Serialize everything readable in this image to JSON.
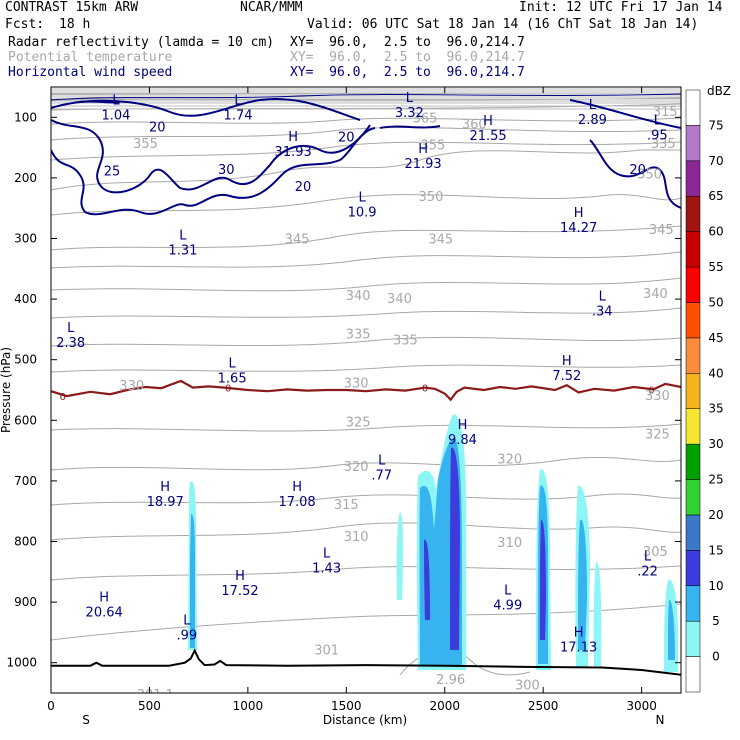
{
  "header": {
    "model": "CONTRAST 15km ARW",
    "org": "NCAR/MMM",
    "init": "Init: 12 UTC Fri 17 Jan 14",
    "fcst_label": "Fcst:",
    "fcst_value": "18 h",
    "valid": "Valid: 06 UTC Sat 18 Jan 14 (16 ChT Sat 18 Jan 14)",
    "fields": [
      {
        "name": "Radar reflectivity (lamda = 10 cm)",
        "xy": "XY=  96.0,  2.5 to  96.0,214.7",
        "color": "#000000"
      },
      {
        "name": "Potential temperature",
        "xy": "XY=  96.0,  2.5 to  96.0,214.7",
        "color": "#a8a8a8"
      },
      {
        "name": "Horizontal wind speed",
        "xy": "XY=  96.0,  2.5 to  96.0,214.7",
        "color": "#000080"
      }
    ]
  },
  "chart_data": {
    "type": "cross-section",
    "xlabel": "Distance (km)",
    "ylabel": "Pressure (hPa)",
    "xlim": [
      0,
      3200
    ],
    "ylim": [
      1050,
      50
    ],
    "xticks": [
      0,
      500,
      1000,
      1500,
      2000,
      2500,
      3000
    ],
    "yticks": [
      100,
      200,
      300,
      400,
      500,
      600,
      700,
      800,
      900,
      1000
    ],
    "endpoints": {
      "left": "S",
      "right": "N"
    },
    "colorbar": {
      "title": "dBZ",
      "levels": [
        0,
        5,
        10,
        15,
        20,
        25,
        30,
        35,
        40,
        45,
        50,
        55,
        60,
        65,
        70,
        75
      ],
      "colors": [
        "#ffffff",
        "#8cf5f5",
        "#37b4f0",
        "#3c3cdc",
        "#3c78c8",
        "#30d230",
        "#00a000",
        "#f5e632",
        "#f5b41e",
        "#fa8c3c",
        "#ff5000",
        "#ff0000",
        "#c80000",
        "#a01414",
        "#8c2896",
        "#b478c8",
        "#ffffff"
      ]
    },
    "theta_labels": [
      {
        "text": "365",
        "x": 1900,
        "p": 100
      },
      {
        "text": "360",
        "x": 2150,
        "p": 110
      },
      {
        "text": "315",
        "x": 3120,
        "p": 90
      },
      {
        "text": "355",
        "x": 480,
        "p": 142
      },
      {
        "text": "355",
        "x": 1940,
        "p": 145
      },
      {
        "text": "335",
        "x": 3110,
        "p": 142
      },
      {
        "text": "350",
        "x": 1930,
        "p": 230
      },
      {
        "text": "350",
        "x": 3040,
        "p": 193
      },
      {
        "text": "345",
        "x": 1250,
        "p": 300
      },
      {
        "text": "345",
        "x": 1980,
        "p": 300
      },
      {
        "text": "345",
        "x": 3100,
        "p": 284
      },
      {
        "text": "340",
        "x": 1560,
        "p": 393
      },
      {
        "text": "340",
        "x": 1770,
        "p": 398
      },
      {
        "text": "340",
        "x": 3070,
        "p": 390
      },
      {
        "text": "335",
        "x": 1560,
        "p": 457
      },
      {
        "text": "335",
        "x": 1800,
        "p": 467
      },
      {
        "text": "330",
        "x": 410,
        "p": 542
      },
      {
        "text": "330",
        "x": 1550,
        "p": 538
      },
      {
        "text": "330",
        "x": 3080,
        "p": 558
      },
      {
        "text": "325",
        "x": 1560,
        "p": 602
      },
      {
        "text": "325",
        "x": 3080,
        "p": 622
      },
      {
        "text": "320",
        "x": 1550,
        "p": 675
      },
      {
        "text": "320",
        "x": 2330,
        "p": 663
      },
      {
        "text": "315",
        "x": 1500,
        "p": 738
      },
      {
        "text": "310",
        "x": 1550,
        "p": 791
      },
      {
        "text": "310",
        "x": 2330,
        "p": 801
      },
      {
        "text": "301",
        "x": 1400,
        "p": 978
      },
      {
        "text": "301.1",
        "x": 530,
        "p": 1052
      },
      {
        "text": "300",
        "x": 2420,
        "p": 1036
      },
      {
        "text": "2.96",
        "x": 2030,
        "p": 1027
      },
      {
        "text": "305",
        "x": 3070,
        "p": 816
      }
    ],
    "wind_labels": [
      {
        "text": "20",
        "x": 540,
        "p": 115
      },
      {
        "text": "25",
        "x": 310,
        "p": 188
      },
      {
        "text": "30",
        "x": 890,
        "p": 185
      },
      {
        "text": "20",
        "x": 1280,
        "p": 213
      },
      {
        "text": "20",
        "x": 1500,
        "p": 132
      },
      {
        "text": "20",
        "x": 2980,
        "p": 185
      }
    ],
    "extrema": [
      {
        "kind": "L",
        "value": "1.04",
        "x": 330,
        "p": 82
      },
      {
        "kind": "L",
        "value": "1.74",
        "x": 950,
        "p": 82
      },
      {
        "kind": "L",
        "value": "3.32",
        "x": 1820,
        "p": 78
      },
      {
        "kind": "L",
        "value": "2.89",
        "x": 2750,
        "p": 90
      },
      {
        "kind": "L",
        "value": ".95",
        "x": 3080,
        "p": 115
      },
      {
        "kind": "H",
        "value": "31.93",
        "x": 1230,
        "p": 142
      },
      {
        "kind": "H",
        "value": "21.93",
        "x": 1890,
        "p": 162
      },
      {
        "kind": "H",
        "value": "21.55",
        "x": 2220,
        "p": 116
      },
      {
        "kind": "L",
        "value": "10.9",
        "x": 1580,
        "p": 242
      },
      {
        "kind": "H",
        "value": "14.27",
        "x": 2680,
        "p": 268
      },
      {
        "kind": "L",
        "value": "1.31",
        "x": 670,
        "p": 305
      },
      {
        "kind": "L",
        "value": ".34",
        "x": 2800,
        "p": 406
      },
      {
        "kind": "L",
        "value": "2.38",
        "x": 100,
        "p": 458
      },
      {
        "kind": "L",
        "value": "1.65",
        "x": 920,
        "p": 516
      },
      {
        "kind": "H",
        "value": "7.52",
        "x": 2620,
        "p": 512
      },
      {
        "kind": "H",
        "value": "9.84",
        "x": 2090,
        "p": 618
      },
      {
        "kind": "L",
        "value": ".77",
        "x": 1680,
        "p": 676
      },
      {
        "kind": "H",
        "value": "18.97",
        "x": 580,
        "p": 720
      },
      {
        "kind": "H",
        "value": "17.08",
        "x": 1250,
        "p": 720
      },
      {
        "kind": "L",
        "value": "1.43",
        "x": 1400,
        "p": 830
      },
      {
        "kind": "H",
        "value": "17.52",
        "x": 960,
        "p": 867
      },
      {
        "kind": "L",
        "value": ".22",
        "x": 3030,
        "p": 835
      },
      {
        "kind": "H",
        "value": "20.64",
        "x": 270,
        "p": 902
      },
      {
        "kind": "L",
        "value": ".99",
        "x": 690,
        "p": 940
      },
      {
        "kind": "L",
        "value": "4.99",
        "x": 2320,
        "p": 891
      },
      {
        "kind": "H",
        "value": "17.13",
        "x": 2680,
        "p": 960
      }
    ],
    "freezing_level_label": "0",
    "freezing_level": [
      [
        0,
        552
      ],
      [
        80,
        560
      ],
      [
        200,
        553
      ],
      [
        300,
        557
      ],
      [
        400,
        549
      ],
      [
        480,
        545
      ],
      [
        560,
        547
      ],
      [
        660,
        535
      ],
      [
        720,
        546
      ],
      [
        800,
        544
      ],
      [
        880,
        546
      ],
      [
        1000,
        550
      ],
      [
        1100,
        552
      ],
      [
        1200,
        549
      ],
      [
        1300,
        551
      ],
      [
        1400,
        550
      ],
      [
        1500,
        550
      ],
      [
        1600,
        552
      ],
      [
        1700,
        549
      ],
      [
        1800,
        551
      ],
      [
        1900,
        546
      ],
      [
        1950,
        548
      ],
      [
        2000,
        556
      ],
      [
        2030,
        566
      ],
      [
        2060,
        553
      ],
      [
        2100,
        546
      ],
      [
        2200,
        550
      ],
      [
        2280,
        545
      ],
      [
        2360,
        548
      ],
      [
        2440,
        544
      ],
      [
        2560,
        550
      ],
      [
        2620,
        542
      ],
      [
        2680,
        554
      ],
      [
        2760,
        548
      ],
      [
        2860,
        551
      ],
      [
        2960,
        545
      ],
      [
        3060,
        549
      ],
      [
        3120,
        540
      ],
      [
        3200,
        545
      ]
    ],
    "freezing_level_label_x": [
      60,
      900,
      1900,
      3050
    ],
    "terrain": [
      [
        0,
        1005
      ],
      [
        200,
        1005
      ],
      [
        230,
        1000
      ],
      [
        260,
        1005
      ],
      [
        600,
        1005
      ],
      [
        680,
        1000
      ],
      [
        710,
        993
      ],
      [
        730,
        980
      ],
      [
        750,
        994
      ],
      [
        780,
        1004
      ],
      [
        830,
        1003
      ],
      [
        860,
        997
      ],
      [
        890,
        1004
      ],
      [
        1200,
        1005
      ],
      [
        1600,
        1004
      ],
      [
        2000,
        1005
      ],
      [
        2400,
        1007
      ],
      [
        2800,
        1008
      ],
      [
        3000,
        1012
      ],
      [
        3200,
        1020
      ]
    ]
  }
}
